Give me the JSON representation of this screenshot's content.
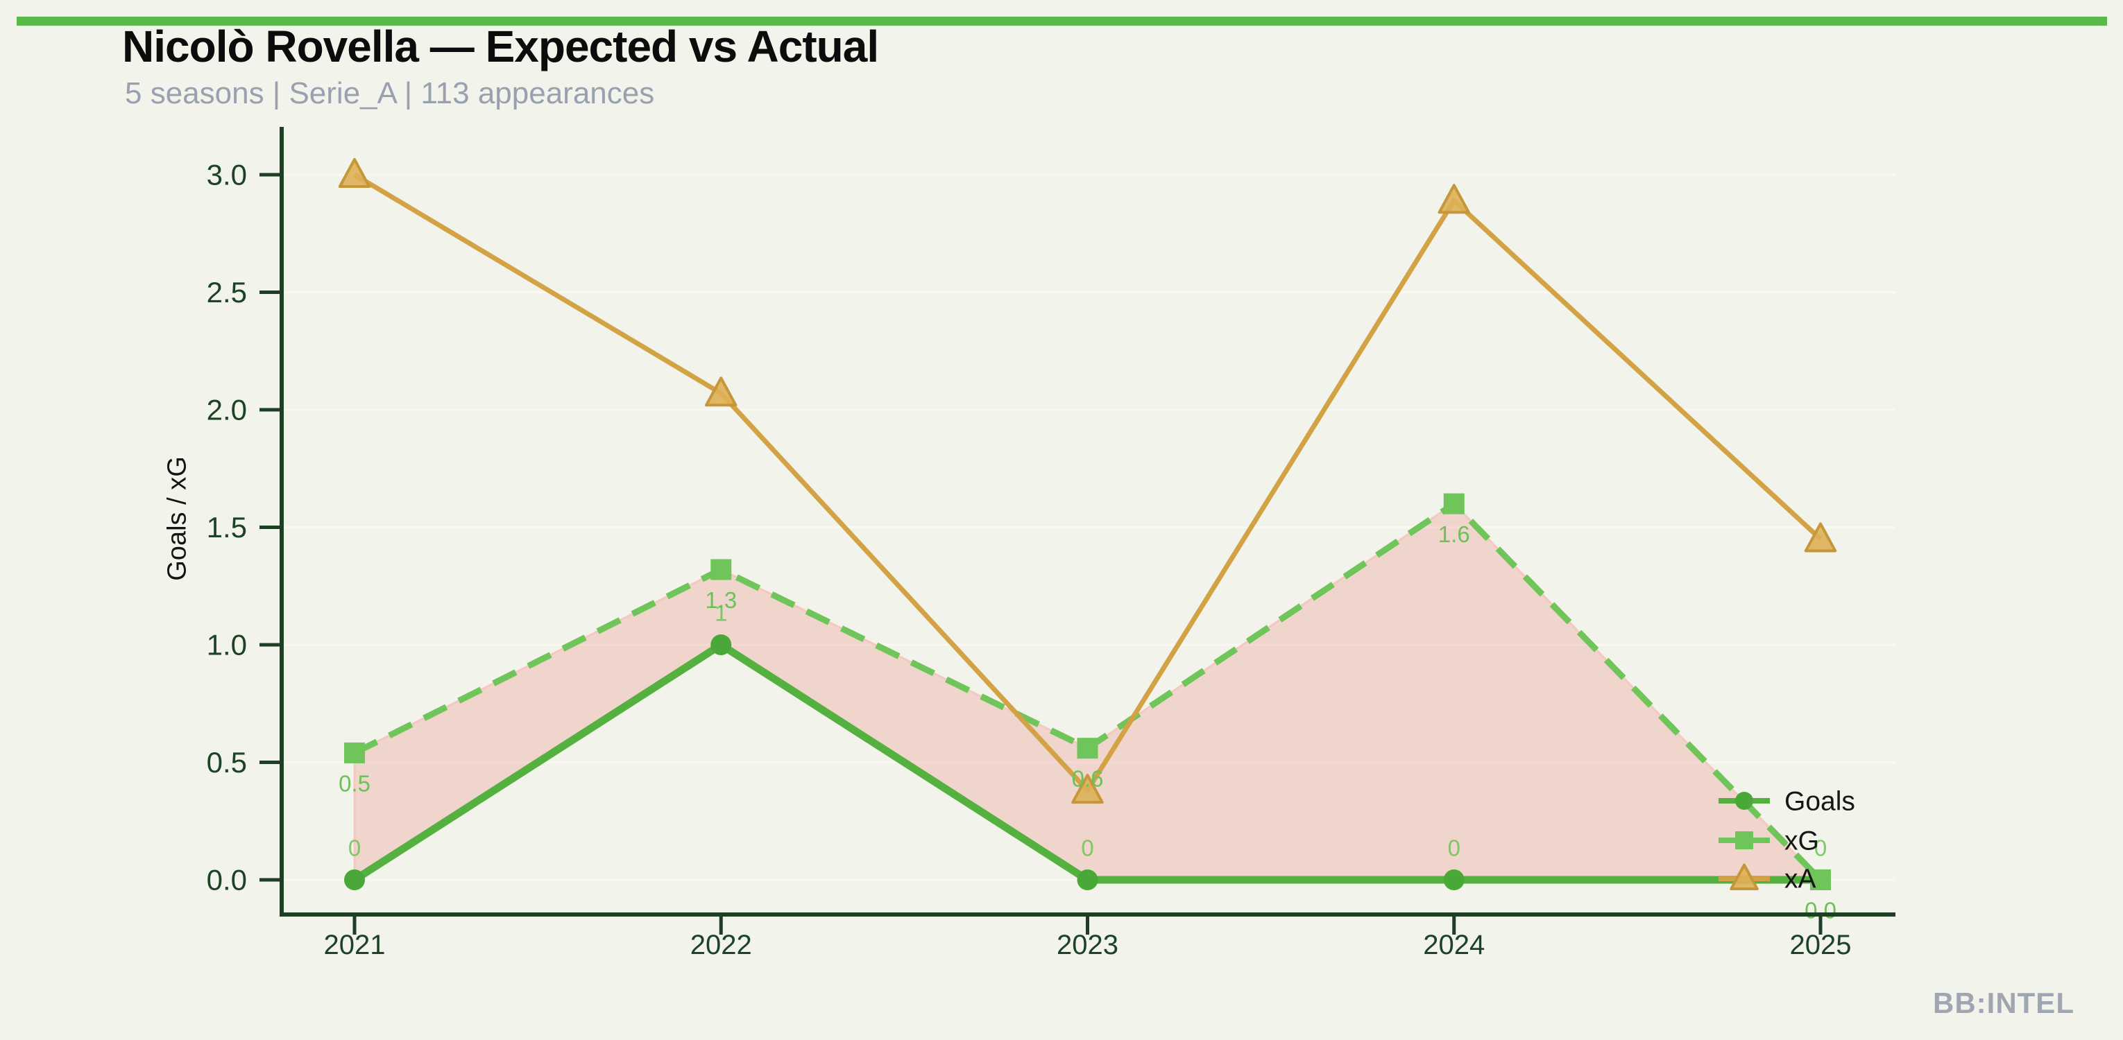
{
  "header": {
    "title": "Nicolò Rovella — Expected vs Actual",
    "subtitle": "5 seasons | Serie_A | 113 appearances"
  },
  "watermark": "BB:INTEL",
  "colors": {
    "background": "#f2f3ea",
    "top_bar": "#5bb84a",
    "axis": "#1d3f24",
    "tick_label": "#1d4226",
    "goals_line": "#54b140",
    "goals_marker": "#4aa838",
    "xg_line": "#6fc45a",
    "xa_line": "#d2a245",
    "xa_marker_fill": "#deb057",
    "xa_marker_edge": "#c6973a",
    "fill_between": "rgba(236,138,128,0.28)",
    "fill_edge": "rgba(246,196,190,0.9)",
    "point_label": "#6cc257",
    "gridline": "#f9f9f1",
    "legend_text": "#161616",
    "subtitle_text": "#99a0af",
    "watermark_text": "#9fa6b2"
  },
  "chart_data": {
    "type": "line",
    "title": "Nicolò Rovella — Expected vs Actual",
    "subtitle": "5 seasons | Serie_A | 113 appearances",
    "xlabel": "",
    "ylabel": "Goals / xG",
    "categories": [
      "2021",
      "2022",
      "2023",
      "2024",
      "2025"
    ],
    "ylim": [
      0.0,
      3.0
    ],
    "yticks": [
      0.0,
      0.5,
      1.0,
      1.5,
      2.0,
      2.5,
      3.0
    ],
    "ytick_labels": [
      "0.0",
      "0.5",
      "1.0",
      "1.5",
      "2.0",
      "2.5",
      "3.0"
    ],
    "grid": "faint horizontal gridlines at each y tick",
    "legend_position": "lower right",
    "series": [
      {
        "name": "Goals",
        "style": "solid",
        "marker": "circle",
        "color": "#54b140",
        "values": [
          0,
          1,
          0,
          0,
          0
        ],
        "point_labels": [
          "0",
          "1",
          "0",
          "0",
          "0"
        ],
        "label_side": "above"
      },
      {
        "name": "xG",
        "style": "dashed",
        "marker": "square",
        "color": "#6fc45a",
        "values": [
          0.54,
          1.32,
          0.56,
          1.6,
          0.0
        ],
        "point_labels": [
          "0.5",
          "1.3",
          "0.6",
          "1.6",
          "0.0"
        ],
        "label_side": "below"
      },
      {
        "name": "xA",
        "style": "solid",
        "marker": "triangle",
        "color": "#d2a245",
        "values": [
          3.0,
          2.07,
          0.38,
          2.89,
          1.45
        ],
        "point_labels": [],
        "label_side": "none"
      }
    ],
    "fill_between": {
      "series_a": "Goals",
      "series_b": "xG",
      "color": "rgba(236,138,128,0.28)",
      "meaning": "gap between expected goals and actual goals"
    }
  }
}
